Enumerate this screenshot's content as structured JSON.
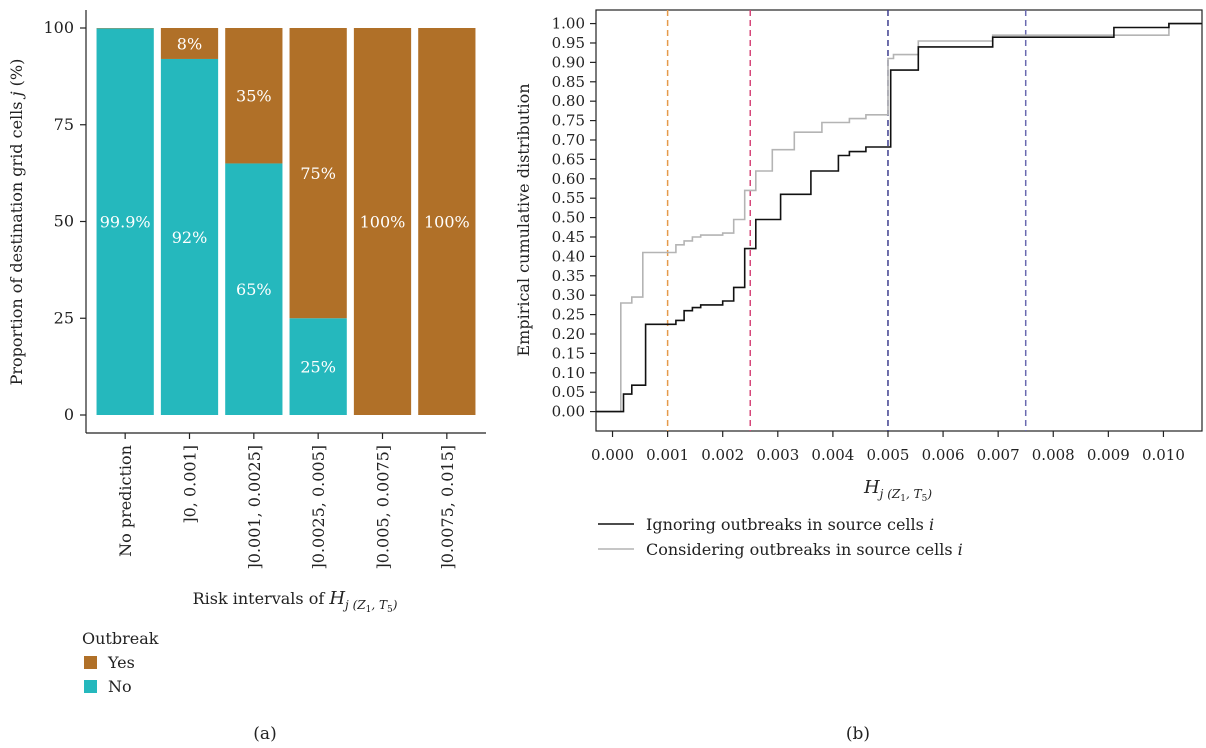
{
  "panels": {
    "a_label": "(a)",
    "b_label": "(b)"
  },
  "chart_data": [
    {
      "type": "bar",
      "stacked": true,
      "categories": [
        "No prediction",
        "]0, 0.001]",
        "]0.001, 0.0025]",
        "]0.0025, 0.005]",
        "]0.005, 0.0075]",
        "]0.0075, 0.015]"
      ],
      "series": [
        {
          "name": "No",
          "color": "#25b8bd",
          "values": [
            99.9,
            92,
            65,
            25,
            0,
            0
          ],
          "labels": [
            "99.9%",
            "92%",
            "65%",
            "25%",
            "",
            ""
          ]
        },
        {
          "name": "Yes",
          "color": "#b07028",
          "values": [
            0.1,
            8,
            35,
            75,
            100,
            100
          ],
          "labels": [
            "",
            "8%",
            "35%",
            "75%",
            "100%",
            "100%"
          ]
        }
      ],
      "ylabel_prefix": "Proportion of destination grid cells ",
      "ylabel_var": "j",
      "ylabel_suffix": " (%)",
      "xlabel_prefix": "Risk intervals of ",
      "xlabel_sym": "H",
      "xlabel_sub_prefix": "j (Z",
      "xlabel_sub_1": "1",
      "xlabel_sub_mid": ", T",
      "xlabel_sub_5": "5",
      "xlabel_sub_close": ")",
      "ylim": [
        0,
        100
      ],
      "yticks": [
        0,
        25,
        50,
        75,
        100
      ],
      "legend_title": "Outbreak",
      "legend": [
        {
          "label": "Yes",
          "color": "#b07028"
        },
        {
          "label": "No",
          "color": "#25b8bd"
        }
      ]
    },
    {
      "type": "line",
      "step": true,
      "xlim": [
        -0.0003,
        0.0107
      ],
      "ylim": [
        -0.05,
        1.035
      ],
      "xticks": [
        0.0,
        0.001,
        0.002,
        0.003,
        0.004,
        0.005,
        0.006,
        0.007,
        0.008,
        0.009,
        0.01
      ],
      "xtick_labels": [
        "0.000",
        "0.001",
        "0.002",
        "0.003",
        "0.004",
        "0.005",
        "0.006",
        "0.007",
        "0.008",
        "0.009",
        "0.010"
      ],
      "yticks": [
        0.0,
        0.05,
        0.1,
        0.15,
        0.2,
        0.25,
        0.3,
        0.35,
        0.4,
        0.45,
        0.5,
        0.55,
        0.6,
        0.65,
        0.7,
        0.75,
        0.8,
        0.85,
        0.9,
        0.95,
        1.0
      ],
      "ytick_labels": [
        "0.00",
        "0.05",
        "0.10",
        "0.15",
        "0.20",
        "0.25",
        "0.30",
        "0.35",
        "0.40",
        "0.45",
        "0.50",
        "0.55",
        "0.60",
        "0.65",
        "0.70",
        "0.75",
        "0.80",
        "0.85",
        "0.90",
        "0.95",
        "1.00"
      ],
      "ylabel": "Empirical cumulative distribution",
      "xlabel_sym": "H",
      "xlabel_sub_prefix": "j (Z",
      "xlabel_sub_1": "1",
      "xlabel_sub_mid": ", T",
      "xlabel_sub_5": "5",
      "xlabel_sub_close": ")",
      "vlines": [
        {
          "x": 0.001,
          "color": "#e59a4a"
        },
        {
          "x": 0.0025,
          "color": "#d6477a"
        },
        {
          "x": 0.005,
          "color": "#3d3d8f"
        },
        {
          "x": 0.0075,
          "color": "#6a6ab0"
        }
      ],
      "series": [
        {
          "name_prefix": "Ignoring outbreaks in source cells ",
          "name_var": "i",
          "color": "#111111",
          "x": [
            -0.0003,
            0.0002,
            0.00035,
            0.0006,
            0.00115,
            0.0013,
            0.00145,
            0.0016,
            0.002,
            0.0022,
            0.0024,
            0.0026,
            0.00305,
            0.0036,
            0.0041,
            0.0043,
            0.0046,
            0.00505,
            0.00555,
            0.0069,
            0.0091,
            0.0101,
            0.0107
          ],
          "y": [
            0.0,
            0.045,
            0.068,
            0.225,
            0.235,
            0.26,
            0.268,
            0.275,
            0.285,
            0.32,
            0.42,
            0.495,
            0.56,
            0.62,
            0.66,
            0.67,
            0.682,
            0.88,
            0.94,
            0.965,
            0.99,
            1.0,
            1.0
          ]
        },
        {
          "name_prefix": "Considering outbreaks in source cells ",
          "name_var": "i",
          "color": "#b4b4b4",
          "x": [
            -0.0003,
            0.00015,
            0.00035,
            0.00055,
            0.00115,
            0.0013,
            0.00145,
            0.0016,
            0.002,
            0.0022,
            0.0024,
            0.0026,
            0.0029,
            0.0033,
            0.0038,
            0.0043,
            0.0046,
            0.005,
            0.0051,
            0.00555,
            0.0069,
            0.0101,
            0.0107
          ],
          "y": [
            0.0,
            0.28,
            0.295,
            0.41,
            0.43,
            0.44,
            0.45,
            0.455,
            0.46,
            0.495,
            0.57,
            0.62,
            0.675,
            0.72,
            0.745,
            0.755,
            0.765,
            0.91,
            0.92,
            0.955,
            0.97,
            1.0,
            1.0
          ]
        }
      ]
    }
  ]
}
